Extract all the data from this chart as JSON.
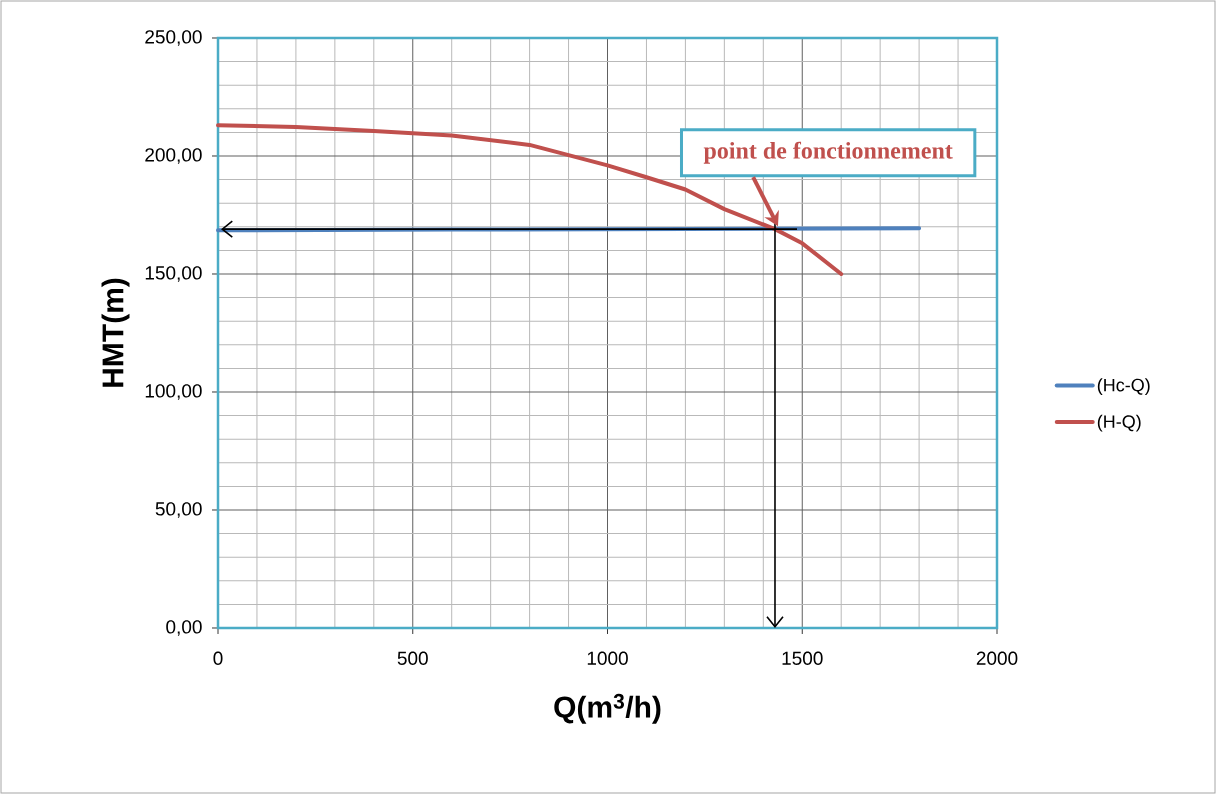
{
  "chart_data": {
    "type": "line",
    "xlabel": "Q(m$^{3}$/h)",
    "ylabel": "HMT(m)",
    "xlim": [
      0,
      2000
    ],
    "xticks": [
      0,
      500,
      1000,
      1500,
      2000
    ],
    "ylim": [
      0,
      250
    ],
    "yticks": [
      {
        "value": 0,
        "label": "0,00"
      },
      {
        "value": 50,
        "label": "50,00"
      },
      {
        "value": 100,
        "label": "100,00"
      },
      {
        "value": 150,
        "label": "150,00"
      },
      {
        "value": 200,
        "label": "200,00"
      },
      {
        "value": 250,
        "label": "250,00"
      }
    ],
    "grid": true,
    "legend": "right",
    "marker": "none",
    "line_style": "solid",
    "series": [
      {
        "name": "(Hc-Q)",
        "color": "#4f81bd",
        "x": [
          0,
          600,
          1200,
          1800
        ],
        "values": [
          168.5,
          168.8,
          169.1,
          169.4
        ]
      },
      {
        "name": "(H-Q)",
        "color": "#c0504d",
        "x": [
          0,
          200,
          400,
          600,
          800,
          1000,
          1100,
          1200,
          1300,
          1430,
          1500,
          1600
        ],
        "values": [
          213,
          212.3,
          210.6,
          208.7,
          204.7,
          196,
          191,
          185.8,
          177.5,
          169,
          163,
          150
        ]
      }
    ],
    "ref_lines": [
      {
        "axis": "y",
        "value": 169,
        "color": "#000000"
      },
      {
        "axis": "x",
        "value": 1430,
        "color": "#000000"
      }
    ],
    "annotations": [
      {
        "text": "point de fonctionnement",
        "x": 1430,
        "y": 169
      }
    ]
  }
}
